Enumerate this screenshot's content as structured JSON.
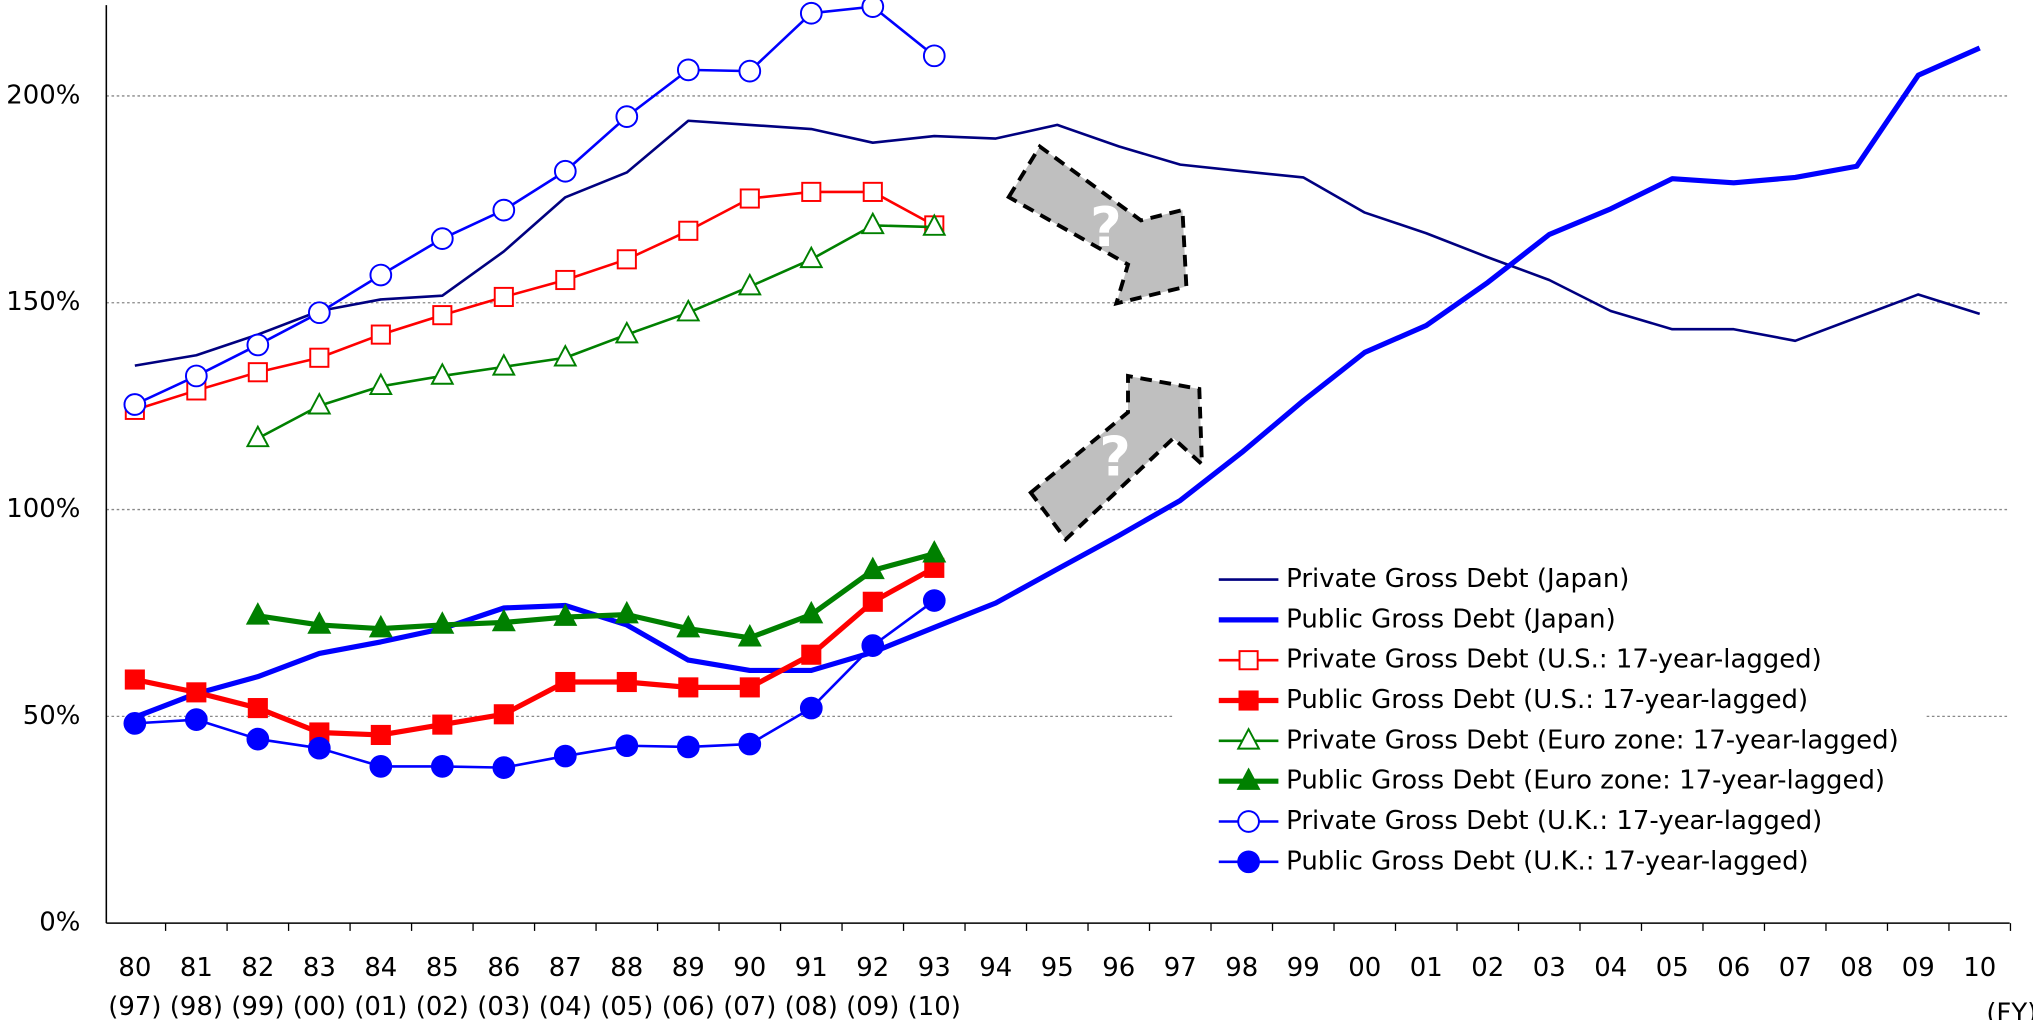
{
  "chart_data": {
    "type": "line",
    "categories": [
      "80",
      "81",
      "82",
      "83",
      "84",
      "85",
      "86",
      "87",
      "88",
      "89",
      "90",
      "91",
      "92",
      "93",
      "94",
      "95",
      "96",
      "97",
      "98",
      "99",
      "00",
      "01",
      "02",
      "03",
      "04",
      "05",
      "06",
      "07",
      "08",
      "09",
      "10"
    ],
    "lagged_labels": [
      "(97)",
      "(98)",
      "(99)",
      "(00)",
      "(01)",
      "(02)",
      "(03)",
      "(04)",
      "(05)",
      "(06)",
      "(07)",
      "(08)",
      "(09)",
      "(10)"
    ],
    "xlabel": "(FY)",
    "annotations": [
      "?",
      "?"
    ],
    "ylim": [
      0,
      222
    ],
    "yticks": [
      {
        "value": 0,
        "label": "0%"
      },
      {
        "value": 50,
        "label": "50%"
      },
      {
        "value": 100,
        "label": "100%"
      },
      {
        "value": 150,
        "label": "150%"
      },
      {
        "value": 200,
        "label": "200%"
      }
    ],
    "grid": true,
    "legend": "lower right",
    "series": [
      {
        "name": "Private Gross Debt (Japan)",
        "color": "#000080",
        "line_style": "thin",
        "marker": "none",
        "filled": false,
        "values": [
          134.8,
          137.3,
          142.3,
          148,
          150.8,
          151.7,
          162.4,
          175.5,
          181.5,
          194,
          193,
          192,
          188.7,
          190.3,
          189.7,
          193,
          187.8,
          183.4,
          181.8,
          180.3,
          171.8,
          166.8,
          161,
          155.5,
          148,
          143.6,
          143.6,
          140.8,
          146.4,
          152,
          147.3
        ]
      },
      {
        "name": "Public Gross Debt (Japan)",
        "color": "#0000ff",
        "line_style": "thick",
        "marker": "none",
        "filled": false,
        "values": [
          49.8,
          55.5,
          59.6,
          65.2,
          68,
          71.2,
          76.2,
          76.8,
          72.1,
          63.6,
          61.1,
          61.1,
          65.5,
          71.5,
          77.4,
          85.6,
          93.7,
          102.2,
          113.8,
          126.3,
          138,
          144.5,
          154.9,
          166.5,
          172.7,
          180,
          179,
          180.3,
          183,
          205,
          211.6
        ]
      },
      {
        "name": "Private Gross Debt (U.S.: 17-year-lagged)",
        "color": "#ff0000",
        "line_style": "thin",
        "marker": "square",
        "filled": false,
        "values": [
          124.1,
          128.8,
          133.2,
          136.7,
          142.3,
          147,
          151.4,
          155.5,
          160.5,
          167.4,
          175.2,
          176.8,
          176.8,
          168.7,
          null,
          null,
          null,
          null,
          null,
          null,
          null,
          null,
          null,
          null,
          null,
          null,
          null,
          null,
          null,
          null,
          null
        ]
      },
      {
        "name": "Public Gross Debt (U.S.: 17-year-lagged)",
        "color": "#ff0000",
        "line_style": "thick",
        "marker": "square",
        "filled": true,
        "values": [
          58.9,
          55.8,
          52,
          46.1,
          45.5,
          48,
          50.5,
          58.3,
          58.3,
          57,
          57,
          64.9,
          77.7,
          85.9,
          null,
          null,
          null,
          null,
          null,
          null,
          null,
          null,
          null,
          null,
          null,
          null,
          null,
          null,
          null,
          null,
          null
        ]
      },
      {
        "name": "Private Gross Debt (Euro zone: 17-year-lagged)",
        "color": "#008000",
        "line_style": "thin",
        "marker": "triangle",
        "filled": false,
        "values": [
          null,
          null,
          117.2,
          125.1,
          129.8,
          132.3,
          134.5,
          136.7,
          142.3,
          147.6,
          153.9,
          160.5,
          168.7,
          168.3,
          null,
          null,
          null,
          null,
          null,
          null,
          null,
          null,
          null,
          null,
          null,
          null,
          null,
          null,
          null,
          null,
          null
        ]
      },
      {
        "name": "Public Gross Debt (Euro zone: 17-year-lagged)",
        "color": "#008000",
        "line_style": "thick",
        "marker": "triangle",
        "filled": true,
        "values": [
          null,
          null,
          74.3,
          72.1,
          71.2,
          72.1,
          72.7,
          74,
          74.6,
          71.2,
          69,
          74.6,
          85.3,
          89.3,
          null,
          null,
          null,
          null,
          null,
          null,
          null,
          null,
          null,
          null,
          null,
          null,
          null,
          null,
          null,
          null,
          null
        ]
      },
      {
        "name": "Private Gross Debt (U.K.: 17-year-lagged)",
        "color": "#0000ff",
        "line_style": "thin",
        "marker": "circle",
        "filled": false,
        "values": [
          125.4,
          132.3,
          139.8,
          147.6,
          156.7,
          165.5,
          172.4,
          181.8,
          195,
          206.3,
          206,
          220,
          221.6,
          209.7,
          null,
          null,
          null,
          null,
          null,
          null,
          null,
          null,
          null,
          null,
          null,
          null,
          null,
          null,
          null,
          null,
          null
        ]
      },
      {
        "name": "Public Gross Debt (U.K.: 17-year-lagged)",
        "color": "#0000ff",
        "line_style": "thin",
        "marker": "circle",
        "filled": true,
        "values": [
          48.3,
          49.2,
          44.5,
          42.3,
          37.9,
          37.9,
          37.6,
          40.4,
          42.9,
          42.6,
          43.3,
          52,
          67.1,
          78,
          null,
          null,
          null,
          null,
          null,
          null,
          null,
          null,
          null,
          null,
          null,
          null,
          null,
          null,
          null,
          null,
          null
        ]
      }
    ]
  }
}
